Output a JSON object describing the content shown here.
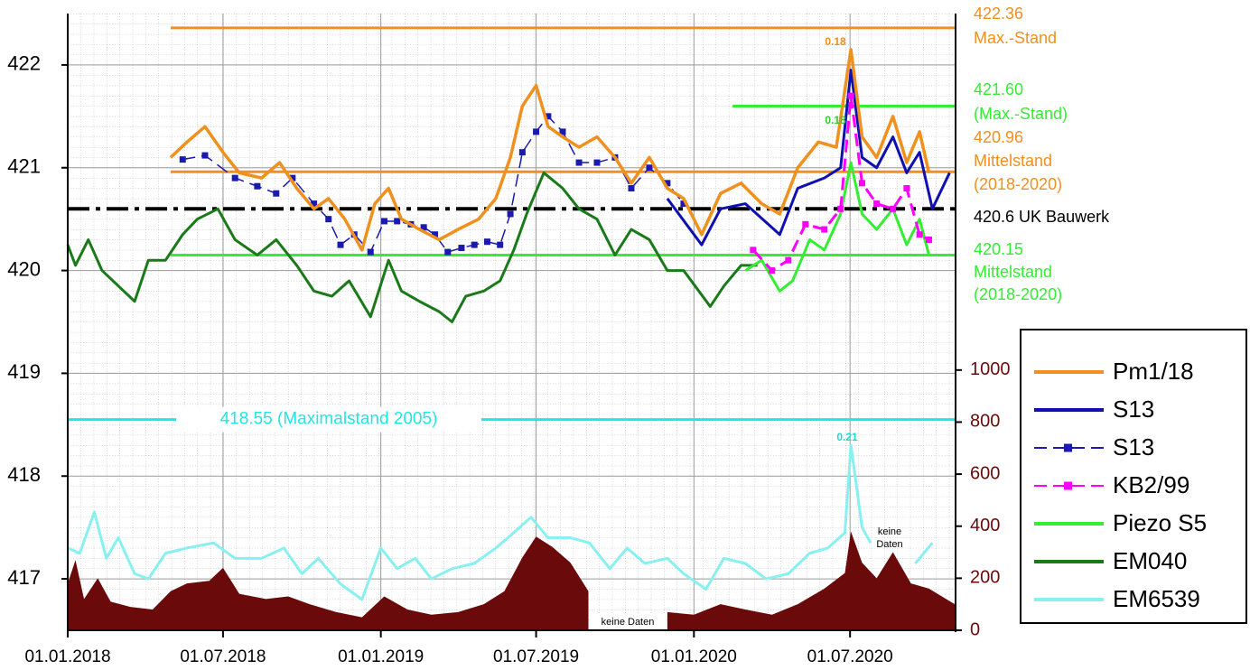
{
  "chart_data": {
    "type": "line",
    "xlim": [
      "2018-01-01",
      "2020-11-01"
    ],
    "xticks": [
      {
        "value": "2018-01-01",
        "label": "01.01.2018"
      },
      {
        "value": "2018-07-01",
        "label": "01.07.2018"
      },
      {
        "value": "2019-01-01",
        "label": "01.01.2019"
      },
      {
        "value": "2019-07-01",
        "label": "01.07.2019"
      },
      {
        "value": "2020-01-01",
        "label": "01.01.2020"
      },
      {
        "value": "2020-07-01",
        "label": "01.07.2020"
      }
    ],
    "ylim": [
      416.5,
      422.5
    ],
    "yticks": [
      417,
      418,
      419,
      420,
      421,
      422
    ],
    "y2lim": [
      0,
      2370
    ],
    "y2ticks": [
      0,
      200,
      400,
      600,
      800,
      1000
    ],
    "grid": true,
    "legend": "right",
    "series": [
      {
        "type": "area",
        "axis": "y2",
        "color": "#6b0a0a",
        "x": [
          "2018-01-01",
          "2018-01-10",
          "2018-01-20",
          "2018-02-05",
          "2018-02-20",
          "2018-03-15",
          "2018-04-10",
          "2018-05-01",
          "2018-05-20",
          "2018-06-15",
          "2018-07-01",
          "2018-07-20",
          "2018-08-20",
          "2018-09-15",
          "2018-10-10",
          "2018-11-10",
          "2018-12-10",
          "2019-01-05",
          "2019-02-01",
          "2019-03-01",
          "2019-04-01",
          "2019-05-01",
          "2019-05-25",
          "2019-06-15",
          "2019-07-01",
          "2019-07-20",
          "2019-08-10",
          "2019-08-31",
          "2019-10-15",
          "2019-12-01",
          "2020-01-01",
          "2020-02-01",
          "2020-03-01",
          "2020-04-01",
          "2020-05-01",
          "2020-06-01",
          "2020-06-25",
          "2020-07-02",
          "2020-07-15",
          "2020-08-01",
          "2020-08-20",
          "2020-09-10",
          "2020-10-01",
          "2020-10-31"
        ],
        "values": [
          180,
          270,
          120,
          200,
          110,
          90,
          80,
          150,
          180,
          190,
          240,
          140,
          120,
          130,
          100,
          70,
          50,
          130,
          80,
          60,
          70,
          100,
          150,
          280,
          360,
          320,
          260,
          150,
          null,
          70,
          60,
          100,
          80,
          60,
          100,
          160,
          220,
          380,
          260,
          200,
          300,
          180,
          160,
          100
        ]
      },
      {
        "name": "EM6539",
        "color": "#88f0f0",
        "width": 3,
        "x": [
          "2018-01-01",
          "2018-01-15",
          "2018-02-01",
          "2018-02-15",
          "2018-03-01",
          "2018-03-20",
          "2018-04-05",
          "2018-04-25",
          "2018-05-20",
          "2018-06-20",
          "2018-07-15",
          "2018-08-15",
          "2018-09-10",
          "2018-10-01",
          "2018-10-20",
          "2018-11-15",
          "2018-12-10",
          "2019-01-01",
          "2019-01-20",
          "2019-02-10",
          "2019-03-01",
          "2019-03-25",
          "2019-04-20",
          "2019-05-15",
          "2019-06-05",
          "2019-06-25",
          "2019-07-15",
          "2019-08-10",
          "2019-09-01",
          "2019-09-25",
          "2019-10-15",
          "2019-11-05",
          "2019-12-01",
          "2019-12-20",
          "2020-01-15",
          "2020-02-05",
          "2020-03-01",
          "2020-03-25",
          "2020-04-20",
          "2020-05-15",
          "2020-06-05",
          "2020-06-25",
          "2020-07-02",
          "2020-07-15",
          "2020-07-25",
          "2020-08-20",
          "2020-09-15",
          "2020-10-05"
        ],
        "values": [
          417.3,
          417.25,
          417.65,
          417.2,
          417.4,
          417.05,
          417.0,
          417.25,
          417.3,
          417.35,
          417.2,
          417.2,
          417.3,
          417.05,
          417.2,
          416.95,
          416.8,
          417.3,
          417.1,
          417.2,
          417.0,
          417.1,
          417.15,
          417.3,
          417.45,
          417.6,
          417.4,
          417.4,
          417.35,
          417.1,
          417.3,
          417.15,
          417.2,
          417.05,
          416.9,
          417.2,
          417.15,
          417.0,
          417.05,
          417.25,
          417.3,
          417.45,
          418.3,
          417.5,
          417.35,
          null,
          417.15,
          417.35
        ]
      },
      {
        "name": "EM040",
        "color": "#1a7a1a",
        "width": 3,
        "x": [
          "2018-01-01",
          "2018-01-10",
          "2018-01-25",
          "2018-02-10",
          "2018-03-01",
          "2018-03-20",
          "2018-04-05",
          "2018-04-25",
          "2018-05-15",
          "2018-06-01",
          "2018-06-25",
          "2018-07-15",
          "2018-08-10",
          "2018-09-01",
          "2018-09-25",
          "2018-10-15",
          "2018-11-05",
          "2018-11-25",
          "2018-12-20",
          "2019-01-10",
          "2019-01-25",
          "2019-02-15",
          "2019-03-10",
          "2019-03-25",
          "2019-04-10",
          "2019-05-01",
          "2019-05-20",
          "2019-06-05",
          "2019-06-20",
          "2019-07-10",
          "2019-08-01",
          "2019-08-20",
          "2019-09-10",
          "2019-10-01",
          "2019-10-20",
          "2019-11-10",
          "2019-12-01",
          "2019-12-20",
          "2020-01-20",
          "2020-02-05",
          "2020-02-25",
          "2020-03-15"
        ],
        "values": [
          420.25,
          420.05,
          420.3,
          420.0,
          419.85,
          419.7,
          420.1,
          420.1,
          420.35,
          420.5,
          420.6,
          420.3,
          420.15,
          420.3,
          420.05,
          419.8,
          419.75,
          419.9,
          419.55,
          420.1,
          419.8,
          419.7,
          419.6,
          419.5,
          419.75,
          419.8,
          419.9,
          420.2,
          420.55,
          420.95,
          420.8,
          420.6,
          420.5,
          420.15,
          420.4,
          420.3,
          420.0,
          420.0,
          419.65,
          419.85,
          420.05,
          420.05
        ]
      },
      {
        "name": "Piezo S5",
        "color": "#33ee33",
        "width": 3,
        "x": [
          "2020-03-01",
          "2020-03-20",
          "2020-04-10",
          "2020-04-25",
          "2020-05-15",
          "2020-06-01",
          "2020-06-20",
          "2020-07-02",
          "2020-07-15",
          "2020-08-01",
          "2020-08-20",
          "2020-09-05",
          "2020-09-20",
          "2020-10-01"
        ],
        "values": [
          420.0,
          420.1,
          419.8,
          419.9,
          420.3,
          420.2,
          420.55,
          421.05,
          420.55,
          420.4,
          420.6,
          420.25,
          420.5,
          420.15
        ]
      },
      {
        "name": "S13",
        "color": "#1a1ab0",
        "width": 1.5,
        "line_style": "dashed",
        "marker": "square",
        "x": [
          "2018-05-15",
          "2018-06-10",
          "2018-07-15",
          "2018-08-10",
          "2018-09-01",
          "2018-09-20",
          "2018-10-15",
          "2018-11-01",
          "2018-11-15",
          "2018-12-01",
          "2018-12-20",
          "2019-01-05",
          "2019-01-20",
          "2019-02-05",
          "2019-02-20",
          "2019-03-05",
          "2019-03-20",
          "2019-04-05",
          "2019-04-20",
          "2019-05-05",
          "2019-05-20",
          "2019-06-01",
          "2019-06-15",
          "2019-07-01",
          "2019-07-15",
          "2019-08-01",
          "2019-08-20",
          "2019-09-10",
          "2019-10-01",
          "2019-10-20",
          "2019-11-10",
          "2019-12-01",
          "2019-12-20"
        ],
        "values": [
          421.08,
          421.12,
          420.9,
          420.82,
          420.75,
          420.9,
          420.65,
          420.5,
          420.25,
          420.35,
          420.18,
          420.48,
          420.48,
          420.45,
          420.42,
          420.35,
          420.18,
          420.22,
          420.25,
          420.28,
          420.25,
          420.55,
          421.15,
          421.35,
          421.5,
          421.35,
          421.05,
          421.05,
          421.1,
          420.8,
          421.0,
          420.85,
          420.65
        ]
      },
      {
        "name": "S13",
        "color": "#1010b0",
        "width": 3,
        "x": [
          "2019-12-01",
          "2020-01-10",
          "2020-02-01",
          "2020-03-01",
          "2020-04-10",
          "2020-05-01",
          "2020-06-01",
          "2020-06-20",
          "2020-07-02",
          "2020-07-15",
          "2020-08-01",
          "2020-08-20",
          "2020-09-05",
          "2020-09-20",
          "2020-10-05",
          "2020-10-25"
        ],
        "values": [
          420.7,
          420.25,
          420.6,
          420.65,
          420.35,
          420.8,
          420.9,
          421.0,
          421.95,
          421.1,
          421.0,
          421.3,
          420.95,
          421.15,
          420.6,
          420.95
        ]
      },
      {
        "name": "KB2/99",
        "color": "#ff00ff",
        "width": 3,
        "line_style": "dashed",
        "marker": "square",
        "x": [
          "2020-03-10",
          "2020-04-01",
          "2020-04-20",
          "2020-05-10",
          "2020-06-01",
          "2020-06-20",
          "2020-07-02",
          "2020-07-15",
          "2020-08-01",
          "2020-08-20",
          "2020-09-05",
          "2020-09-20",
          "2020-10-01"
        ],
        "values": [
          420.2,
          420.0,
          420.1,
          420.45,
          420.4,
          420.6,
          421.7,
          420.85,
          420.65,
          420.6,
          420.8,
          420.35,
          420.3
        ]
      },
      {
        "name": "Pm1/18",
        "color": "#f0901e",
        "width": 3.5,
        "x": [
          "2018-05-01",
          "2018-05-20",
          "2018-06-10",
          "2018-07-01",
          "2018-07-20",
          "2018-08-15",
          "2018-09-05",
          "2018-09-25",
          "2018-10-15",
          "2018-11-01",
          "2018-11-20",
          "2018-12-10",
          "2018-12-25",
          "2019-01-10",
          "2019-01-25",
          "2019-02-15",
          "2019-03-10",
          "2019-04-01",
          "2019-04-25",
          "2019-05-15",
          "2019-06-01",
          "2019-06-15",
          "2019-07-01",
          "2019-07-15",
          "2019-08-01",
          "2019-08-20",
          "2019-09-10",
          "2019-10-01",
          "2019-10-20",
          "2019-11-10",
          "2019-12-01",
          "2019-12-20",
          "2020-01-10",
          "2020-02-01",
          "2020-02-25",
          "2020-03-20",
          "2020-04-10",
          "2020-05-01",
          "2020-05-25",
          "2020-06-15",
          "2020-07-02",
          "2020-07-15",
          "2020-08-01",
          "2020-08-20",
          "2020-09-05",
          "2020-09-20",
          "2020-10-01"
        ],
        "values": [
          421.1,
          421.25,
          421.4,
          421.15,
          420.95,
          420.9,
          421.05,
          420.8,
          420.6,
          420.7,
          420.5,
          420.2,
          420.65,
          420.8,
          420.5,
          420.4,
          420.3,
          420.4,
          420.5,
          420.7,
          421.1,
          421.6,
          421.8,
          421.4,
          421.3,
          421.2,
          421.3,
          421.1,
          420.85,
          421.1,
          420.8,
          420.7,
          420.35,
          420.75,
          420.85,
          420.65,
          420.55,
          421.0,
          421.25,
          421.2,
          422.15,
          421.3,
          421.1,
          421.5,
          421.05,
          421.35,
          420.95
        ]
      }
    ],
    "legend_order": [
      7,
      5,
      4,
      6,
      3,
      2,
      1
    ],
    "reference_lines": [
      {
        "value": 422.36,
        "start": "2018-05-01",
        "color": "#f0901e",
        "label": [
          "422.36",
          "Max.-Stand"
        ]
      },
      {
        "value": 421.6,
        "start": "2020-02-15",
        "color": "#33ee33",
        "label": [
          "421.60",
          "(Max.-Stand)"
        ]
      },
      {
        "value": 420.96,
        "start": "2018-05-01",
        "color": "#f0901e",
        "label": [
          "420.96",
          "Mittelstand",
          "(2018-2020)"
        ]
      },
      {
        "value": 420.15,
        "start": "2018-05-01",
        "color": "#33ee33",
        "label": [
          "420.15",
          "Mittelstand",
          "(2018-2020)"
        ]
      },
      {
        "value": 420.6,
        "start": "2018-01-01",
        "color": "#000000",
        "line_style": "dashdot",
        "label": [
          "420.6 UK Bauwerk"
        ]
      },
      {
        "value": 418.55,
        "start": "2018-01-01",
        "color": "#22e6e6",
        "label": [
          "418.55 (Maximalstand 2005)"
        ]
      }
    ],
    "annotations": [
      {
        "text": [
          "0.18"
        ],
        "color": "#f0901e"
      },
      {
        "text": [
          "0.18"
        ],
        "color": "#33cc33"
      },
      {
        "text": [
          "0.21"
        ],
        "color": "#22d6d6"
      },
      {
        "text": [
          "keine Daten"
        ],
        "color": "#000000"
      },
      {
        "text": [
          "keine",
          "Daten"
        ],
        "color": "#000000"
      }
    ]
  }
}
